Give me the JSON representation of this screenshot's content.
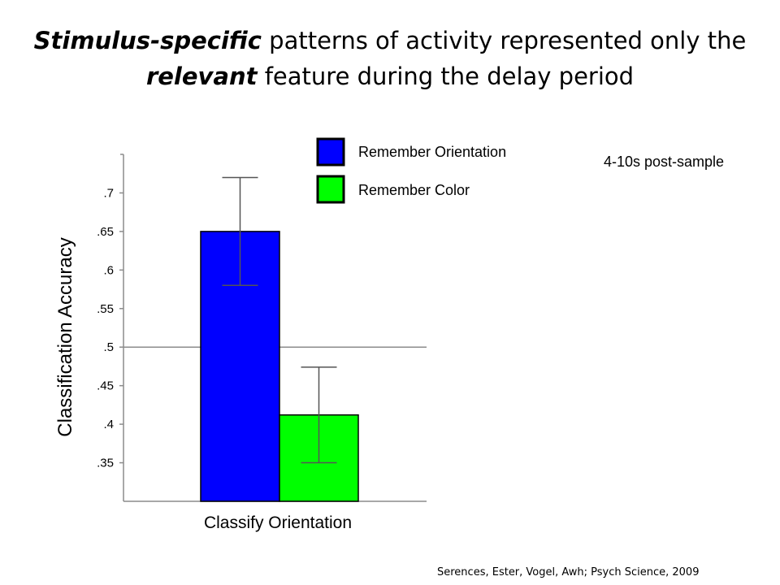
{
  "slide": {
    "title_part1": "Stimulus-specific",
    "title_part2": " patterns of activity represented only the ",
    "title_part3": "relevant",
    "title_part4": " feature during the delay period",
    "citation": "Serences, Ester, Vogel, Awh; Psych Science, 2009"
  },
  "chart_data": {
    "type": "bar",
    "title": "",
    "annotation": "4-10s post-sample",
    "xlabel": "",
    "ylabel": "Classification Accuracy",
    "categories": [
      "Classify Orientation"
    ],
    "ylim": [
      0.3,
      0.75
    ],
    "yticks": [
      0.35,
      0.4,
      0.45,
      0.5,
      0.55,
      0.6,
      0.65,
      0.7
    ],
    "ytick_labels": [
      ".35",
      ".4",
      ".45",
      ".5",
      ".55",
      ".6",
      ".65",
      ".7"
    ],
    "reference_line": 0.5,
    "grid": false,
    "legend_position": "top",
    "series": [
      {
        "name": "Remember Orientation",
        "values": [
          0.65
        ],
        "error_low": [
          0.58
        ],
        "error_high": [
          0.72
        ],
        "color": "#0000ff"
      },
      {
        "name": "Remember Color",
        "values": [
          0.412
        ],
        "error_low": [
          0.35
        ],
        "error_high": [
          0.474
        ],
        "color": "#00ff00"
      }
    ]
  }
}
